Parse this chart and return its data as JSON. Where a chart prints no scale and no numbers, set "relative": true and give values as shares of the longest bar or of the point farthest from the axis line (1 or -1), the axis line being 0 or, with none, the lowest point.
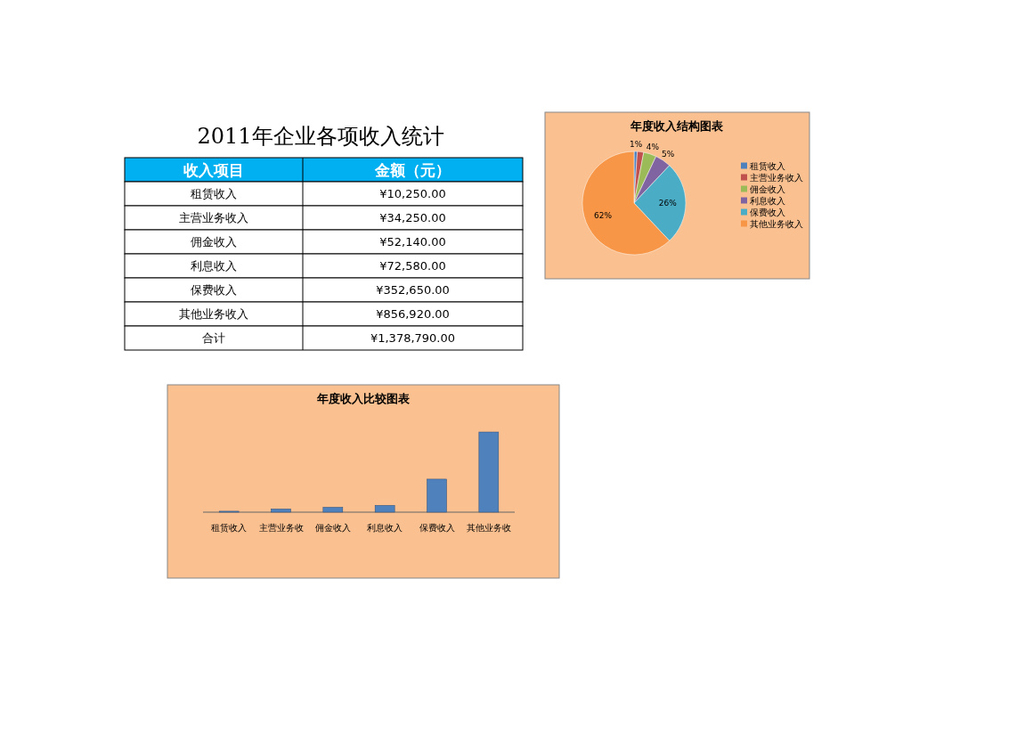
{
  "chart_data": [
    {
      "type": "other",
      "title": "2011年企业各项收入统计",
      "xlabel": "收入项目",
      "ylabel": "金额（元）",
      "categories": [
        "租赁收入",
        "主营业务收入",
        "佣金收入",
        "利息收入",
        "保费收入",
        "其他业务收入",
        "合计"
      ],
      "value_labels": [
        "¥10,250.00",
        "¥34,250.00",
        "¥52,140.00",
        "¥72,580.00",
        "¥352,650.00",
        "¥856,920.00",
        "¥1,378,790.00"
      ]
    },
    {
      "type": "pie",
      "title": "年度收入结构图表",
      "categories": [
        "租赁收入",
        "主营业务收入",
        "佣金收入",
        "利息收入",
        "保费收入",
        "其他业务收入"
      ],
      "values": [
        1,
        2,
        4,
        5,
        26,
        62
      ],
      "colors": [
        "#4f81bd",
        "#c0504d",
        "#9bbb59",
        "#8064a2",
        "#4bacc6",
        "#f79646"
      ],
      "value_labels": [
        "1%",
        null,
        "4%",
        "5%",
        "26%",
        "62%"
      ],
      "legend": "right"
    },
    {
      "type": "bar",
      "title": "年度收入比较图表",
      "categories": [
        "租赁收入",
        "主营业务收",
        "佣金收入",
        "利息收入",
        "保费收入",
        "其他业务收"
      ],
      "values": [
        0.012,
        0.04,
        0.061,
        0.085,
        0.412,
        1
      ],
      "relative": true,
      "color": "#4f81bd"
    }
  ]
}
